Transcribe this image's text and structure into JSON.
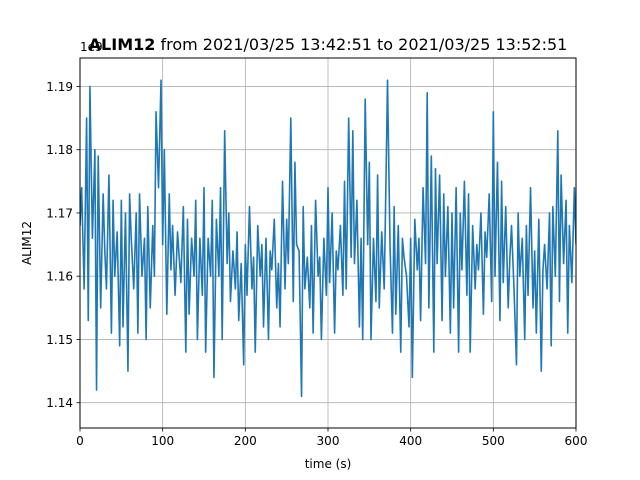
{
  "chart_data": {
    "type": "line",
    "title_bold": "ALIM12",
    "title_rest": " from 2021/03/25 13:42:51 to 2021/03/25 13:52:51",
    "xlabel": "time (s)",
    "ylabel": "ALIM12",
    "offset_label": "1e9",
    "xlim": [
      0,
      600
    ],
    "ylim": [
      1.136,
      1.1945
    ],
    "xticks": [
      0,
      100,
      200,
      300,
      400,
      500,
      600
    ],
    "xtick_labels": [
      "0",
      "100",
      "200",
      "300",
      "400",
      "500",
      "600"
    ],
    "yticks": [
      1.14,
      1.15,
      1.16,
      1.17,
      1.18,
      1.19
    ],
    "ytick_labels": [
      "1.14",
      "1.15",
      "1.16",
      "1.17",
      "1.18",
      "1.19"
    ],
    "grid": true,
    "line_color": "#1f77b4",
    "series": [
      {
        "name": "",
        "x": [
          0,
          2,
          5,
          8,
          10,
          12,
          15,
          18,
          20,
          22,
          25,
          28,
          30,
          32,
          35,
          38,
          40,
          42,
          45,
          48,
          50,
          52,
          55,
          58,
          60,
          62,
          65,
          68,
          70,
          72,
          75,
          78,
          80,
          82,
          85,
          88,
          90,
          92,
          95,
          98,
          100,
          102,
          105,
          108,
          110,
          112,
          115,
          118,
          120,
          122,
          125,
          128,
          130,
          132,
          135,
          138,
          140,
          142,
          145,
          148,
          150,
          152,
          155,
          158,
          160,
          162,
          165,
          168,
          170,
          172,
          175,
          178,
          180,
          182,
          185,
          188,
          190,
          192,
          195,
          198,
          200,
          202,
          205,
          208,
          210,
          212,
          215,
          218,
          220,
          222,
          225,
          228,
          230,
          232,
          235,
          238,
          240,
          242,
          245,
          248,
          250,
          252,
          255,
          258,
          260,
          262,
          265,
          268,
          270,
          272,
          275,
          278,
          280,
          282,
          285,
          288,
          290,
          292,
          295,
          298,
          300,
          302,
          305,
          308,
          310,
          312,
          315,
          318,
          320,
          322,
          325,
          328,
          330,
          332,
          335,
          338,
          340,
          342,
          345,
          348,
          350,
          352,
          355,
          358,
          360,
          362,
          365,
          368,
          370,
          372,
          375,
          378,
          380,
          382,
          385,
          388,
          390,
          392,
          395,
          398,
          400,
          402,
          405,
          408,
          410,
          412,
          415,
          418,
          420,
          422,
          425,
          428,
          430,
          432,
          435,
          438,
          440,
          442,
          445,
          448,
          450,
          452,
          455,
          458,
          460,
          462,
          465,
          468,
          470,
          472,
          475,
          478,
          480,
          482,
          485,
          488,
          490,
          492,
          495,
          498,
          500,
          502,
          505,
          508,
          510,
          512,
          515,
          518,
          520,
          522,
          525,
          528,
          530,
          532,
          535,
          538,
          540,
          542,
          545,
          548,
          550,
          552,
          555,
          558,
          560,
          562,
          565,
          568,
          570,
          572,
          575,
          578,
          580,
          582,
          585,
          588,
          590,
          592,
          595,
          598,
          600
        ],
        "y": [
          1.168,
          1.174,
          1.158,
          1.185,
          1.153,
          1.19,
          1.166,
          1.18,
          1.142,
          1.179,
          1.155,
          1.173,
          1.164,
          1.158,
          1.176,
          1.151,
          1.172,
          1.16,
          1.167,
          1.149,
          1.172,
          1.152,
          1.17,
          1.145,
          1.173,
          1.166,
          1.158,
          1.17,
          1.151,
          1.173,
          1.16,
          1.166,
          1.15,
          1.171,
          1.155,
          1.168,
          1.16,
          1.186,
          1.174,
          1.191,
          1.165,
          1.18,
          1.154,
          1.173,
          1.161,
          1.168,
          1.157,
          1.167,
          1.163,
          1.159,
          1.171,
          1.148,
          1.169,
          1.154,
          1.166,
          1.16,
          1.172,
          1.15,
          1.166,
          1.157,
          1.174,
          1.148,
          1.166,
          1.16,
          1.172,
          1.144,
          1.169,
          1.16,
          1.174,
          1.15,
          1.183,
          1.162,
          1.17,
          1.156,
          1.164,
          1.158,
          1.167,
          1.153,
          1.162,
          1.146,
          1.165,
          1.157,
          1.171,
          1.158,
          1.163,
          1.148,
          1.168,
          1.16,
          1.165,
          1.152,
          1.166,
          1.15,
          1.164,
          1.161,
          1.169,
          1.155,
          1.162,
          1.152,
          1.175,
          1.158,
          1.169,
          1.162,
          1.185,
          1.156,
          1.178,
          1.165,
          1.164,
          1.141,
          1.171,
          1.158,
          1.163,
          1.155,
          1.168,
          1.151,
          1.172,
          1.16,
          1.163,
          1.15,
          1.166,
          1.157,
          1.174,
          1.159,
          1.17,
          1.151,
          1.164,
          1.161,
          1.168,
          1.157,
          1.175,
          1.158,
          1.185,
          1.163,
          1.183,
          1.162,
          1.172,
          1.152,
          1.166,
          1.15,
          1.188,
          1.165,
          1.178,
          1.15,
          1.166,
          1.156,
          1.176,
          1.155,
          1.167,
          1.158,
          1.174,
          1.191,
          1.165,
          1.151,
          1.171,
          1.154,
          1.168,
          1.148,
          1.166,
          1.163,
          1.16,
          1.152,
          1.166,
          1.144,
          1.169,
          1.161,
          1.166,
          1.153,
          1.174,
          1.162,
          1.189,
          1.155,
          1.179,
          1.148,
          1.177,
          1.162,
          1.176,
          1.153,
          1.173,
          1.16,
          1.171,
          1.151,
          1.17,
          1.155,
          1.174,
          1.148,
          1.17,
          1.161,
          1.175,
          1.157,
          1.173,
          1.148,
          1.168,
          1.158,
          1.165,
          1.161,
          1.17,
          1.154,
          1.167,
          1.163,
          1.173,
          1.156,
          1.186,
          1.16,
          1.178,
          1.153,
          1.175,
          1.159,
          1.171,
          1.155,
          1.163,
          1.168,
          1.158,
          1.146,
          1.17,
          1.16,
          1.166,
          1.15,
          1.168,
          1.157,
          1.174,
          1.155,
          1.164,
          1.151,
          1.169,
          1.145,
          1.161,
          1.165,
          1.158,
          1.17,
          1.149,
          1.171,
          1.16,
          1.183,
          1.156,
          1.176,
          1.162,
          1.172,
          1.151,
          1.168,
          1.159,
          1.174,
          1.165
        ]
      }
    ]
  }
}
